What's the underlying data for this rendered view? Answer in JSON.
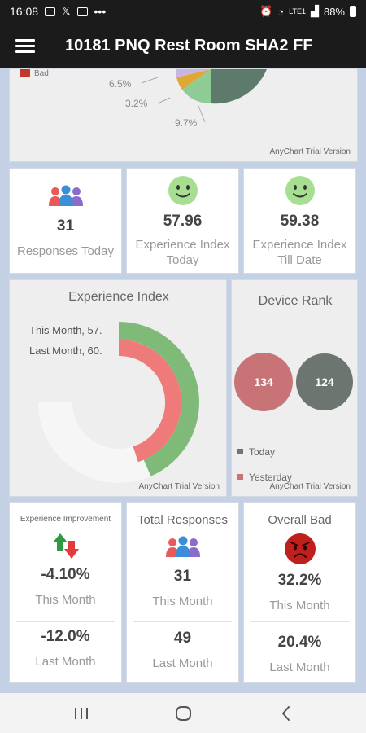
{
  "status_bar": {
    "time": "16:08",
    "battery": "88%",
    "network": "LTE1"
  },
  "app_bar": {
    "title": "10181 PNQ Rest Room SHA2 FF",
    "menu_icon": "hamburger-menu-icon"
  },
  "pie_chart": {
    "watermark": "AnyChart Trial Version",
    "legend_partial": "Bad",
    "chart_data": {
      "type": "pie",
      "labels_shown": [
        "6.5%",
        "3.2%",
        "9.7%"
      ],
      "slice_colors": [
        "#c9b5e0",
        "#e0a832",
        "#8fcc95",
        "#5e7a6b"
      ]
    }
  },
  "stats": {
    "responses_today": {
      "value": "31",
      "label": "Responses Today",
      "icon": "people-group-icon"
    },
    "exp_index_today": {
      "value": "57.96",
      "label": "Experience Index Today",
      "icon": "smiley-face-icon"
    },
    "exp_index_till_date": {
      "value": "59.38",
      "label": "Experience Index Till Date",
      "icon": "smiley-face-icon"
    }
  },
  "experience_index": {
    "title": "Experience Index",
    "watermark": "AnyChart Trial Version",
    "chart_data": {
      "type": "radial-bar",
      "series": [
        {
          "name": "This Month",
          "label": "This Month, 57.",
          "value": 57.96,
          "color": "#7fba78"
        },
        {
          "name": "Last Month",
          "label": "Last Month, 60.",
          "value": 60,
          "color": "#ef7a7a"
        }
      ],
      "max": 100
    }
  },
  "device_rank": {
    "title": "Device Rank",
    "watermark": "AnyChart Trial Version",
    "chart_data": {
      "type": "bubble",
      "series": [
        {
          "name": "Yesterday",
          "value": 134,
          "color": "#c87477"
        },
        {
          "name": "Today",
          "value": 124,
          "color": "#6d7570"
        }
      ]
    },
    "legend": [
      {
        "name": "Today",
        "color": "#6d7570"
      },
      {
        "name": "Yesterday",
        "color": "#c87477"
      }
    ]
  },
  "improvement": {
    "title": "Experience Improvement",
    "icon": "up-down-arrows-icon",
    "this_month_value": "-4.10%",
    "this_month_label": "This Month",
    "last_month_value": "-12.0%",
    "last_month_label": "Last Month"
  },
  "total_responses": {
    "title": "Total Responses",
    "icon": "people-group-icon",
    "this_month_value": "31",
    "this_month_label": "This Month",
    "last_month_value": "49",
    "last_month_label": "Last Month"
  },
  "overall_bad": {
    "title": "Overall Bad",
    "icon": "angry-face-icon",
    "this_month_value": "32.2%",
    "this_month_label": "This Month",
    "last_month_value": "20.4%",
    "last_month_label": "Last Month"
  },
  "nav_bar": {
    "recent_icon": "recent-apps-icon",
    "home_icon": "home-icon",
    "back_icon": "back-icon"
  }
}
